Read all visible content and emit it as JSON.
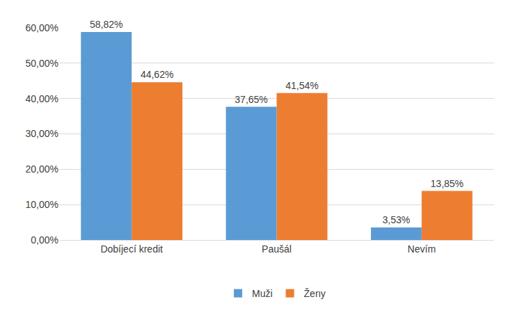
{
  "chart_data": {
    "type": "bar",
    "categories": [
      "Dobíjecí kredit",
      "Paušál",
      "Nevím"
    ],
    "series": [
      {
        "name": "Muži",
        "color": "#5b9bd5",
        "values": [
          58.82,
          37.65,
          3.53
        ],
        "value_labels": [
          "58,82%",
          "37,65%",
          "3,53%"
        ]
      },
      {
        "name": "Ženy",
        "color": "#ed7d31",
        "values": [
          44.62,
          41.54,
          13.85
        ],
        "value_labels": [
          "44,62%",
          "41,54%",
          "13,85%"
        ]
      }
    ],
    "ylim": [
      0,
      60
    ],
    "yticks": [
      {
        "value": 0,
        "label": "0,00%"
      },
      {
        "value": 10,
        "label": "10,00%"
      },
      {
        "value": 20,
        "label": "20,00%"
      },
      {
        "value": 30,
        "label": "30,00%"
      },
      {
        "value": 40,
        "label": "40,00%"
      },
      {
        "value": 50,
        "label": "50,00%"
      },
      {
        "value": 60,
        "label": "60,00%"
      }
    ],
    "grid": true,
    "legend": "bottom",
    "data_labels": true
  }
}
